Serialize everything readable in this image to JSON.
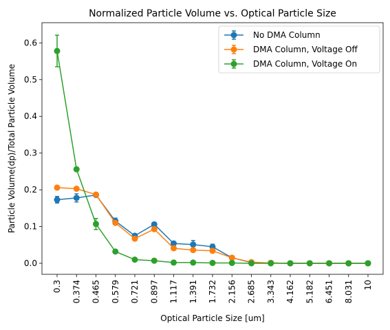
{
  "chart_data": {
    "type": "line",
    "title": "Normalized Particle Volume vs. Optical Particle Size",
    "xlabel": "Optical Particle Size [um]",
    "ylabel": "Particle Volume(dp)/Total Particle Volume",
    "categories": [
      "0.3",
      "0.374",
      "0.465",
      "0.579",
      "0.721",
      "0.897",
      "1.117",
      "1.391",
      "1.732",
      "2.156",
      "2.685",
      "3.343",
      "4.162",
      "5.182",
      "6.451",
      "8.031",
      "10"
    ],
    "ylim": [
      -0.03,
      0.655
    ],
    "yticks": [
      "0.0",
      "0.1",
      "0.2",
      "0.3",
      "0.4",
      "0.5",
      "0.6"
    ],
    "grid": false,
    "legend_position": "top-right",
    "series": [
      {
        "name": "No DMA Column",
        "color": "#1f77b4",
        "values": [
          0.173,
          0.178,
          0.186,
          0.115,
          0.075,
          0.106,
          0.054,
          0.051,
          0.045,
          0.015,
          0.002,
          0.001,
          0.0,
          0.0,
          0.0,
          0.0,
          0.0
        ],
        "errors": [
          0.009,
          0.011,
          0.005,
          0.008,
          0.004,
          0.005,
          0.003,
          0.011,
          0.007,
          0.002,
          0.001,
          0.0,
          0.0,
          0.0,
          0.0,
          0.0,
          0.0
        ]
      },
      {
        "name": "DMA Column, Voltage Off",
        "color": "#ff7f0e",
        "values": [
          0.206,
          0.203,
          0.187,
          0.11,
          0.067,
          0.093,
          0.041,
          0.036,
          0.034,
          0.015,
          0.003,
          0.001,
          0.0,
          0.0,
          0.0,
          0.0,
          0.0
        ],
        "errors": [
          0.004,
          0.004,
          0.004,
          0.005,
          0.004,
          0.004,
          0.003,
          0.003,
          0.003,
          0.002,
          0.001,
          0.0,
          0.0,
          0.0,
          0.0,
          0.0,
          0.0
        ]
      },
      {
        "name": "DMA Column, Voltage On",
        "color": "#2ca02c",
        "values": [
          0.578,
          0.256,
          0.107,
          0.032,
          0.01,
          0.007,
          0.002,
          0.002,
          0.001,
          0.001,
          0.0,
          0.0,
          0.0,
          0.0,
          0.0,
          0.0,
          0.0
        ],
        "errors": [
          0.043,
          0.005,
          0.015,
          0.004,
          0.003,
          0.004,
          0.001,
          0.001,
          0.001,
          0.001,
          0.0,
          0.0,
          0.0,
          0.0,
          0.0,
          0.0,
          0.0
        ]
      }
    ]
  }
}
